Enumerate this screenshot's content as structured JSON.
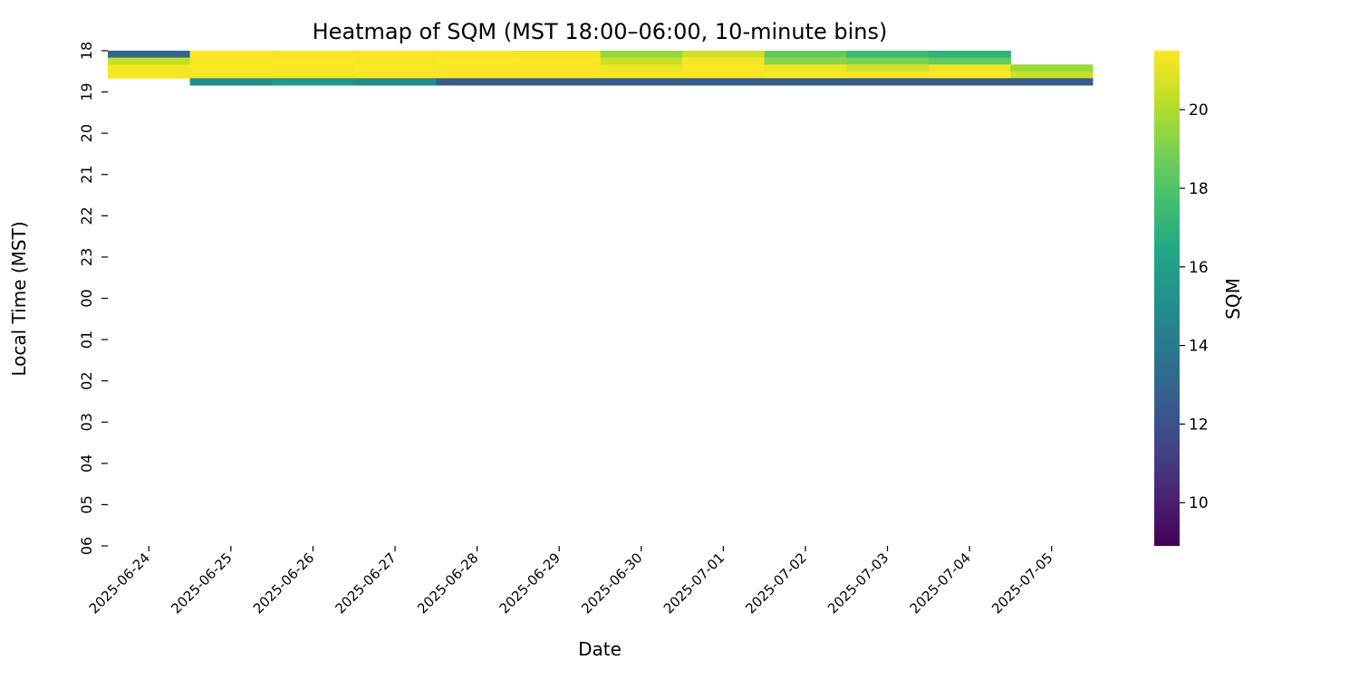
{
  "chart_data": {
    "type": "heatmap",
    "title": "Heatmap of SQM (MST 18:00–06:00, 10-minute bins)",
    "xlabel": "Date",
    "ylabel": "Local Time (MST)",
    "colorbar_label": "SQM",
    "colormap": "viridis",
    "vmin": 8.9,
    "vmax": 21.5,
    "colorbar_ticks": [
      10,
      12,
      14,
      16,
      18,
      20
    ],
    "x_categories": [
      "2025-06-24",
      "2025-06-25",
      "2025-06-26",
      "2025-06-27",
      "2025-06-28",
      "2025-06-29",
      "2025-06-30",
      "2025-07-01",
      "2025-07-02",
      "2025-07-03",
      "2025-07-04",
      "2025-07-05"
    ],
    "y_tick_labels": [
      "18",
      "19",
      "20",
      "21",
      "22",
      "23",
      "00",
      "01",
      "02",
      "03",
      "04",
      "05",
      "06"
    ],
    "y_bin_minutes": 10,
    "y_range_hours": [
      18,
      30
    ],
    "columns": [
      {
        "date": "2025-06-24",
        "start_bin": 0,
        "values": [
          13.0,
          20.3,
          21.3,
          21.4
        ]
      },
      {
        "date": "2025-06-25",
        "start_bin": 0,
        "values": [
          21.5,
          21.4,
          21.5,
          21.3,
          15.0
        ]
      },
      {
        "date": "2025-06-26",
        "start_bin": 0,
        "values": [
          21.4,
          21.5,
          21.4,
          21.3,
          15.5
        ]
      },
      {
        "date": "2025-06-27",
        "start_bin": 0,
        "values": [
          21.5,
          21.4,
          21.5,
          21.4,
          15.0
        ]
      },
      {
        "date": "2025-06-28",
        "start_bin": 0,
        "values": [
          21.4,
          21.5,
          21.4,
          21.5,
          12.5
        ]
      },
      {
        "date": "2025-06-29",
        "start_bin": 0,
        "values": [
          21.3,
          21.5,
          21.4,
          21.5,
          12.5
        ]
      },
      {
        "date": "2025-06-30",
        "start_bin": 0,
        "values": [
          19.5,
          20.5,
          21.2,
          21.4,
          12.5
        ]
      },
      {
        "date": "2025-07-01",
        "start_bin": 0,
        "values": [
          20.6,
          21.3,
          21.5,
          21.4,
          12.5
        ]
      },
      {
        "date": "2025-07-02",
        "start_bin": 0,
        "values": [
          18.5,
          19.3,
          21.2,
          21.5,
          12.5
        ]
      },
      {
        "date": "2025-07-03",
        "start_bin": 0,
        "values": [
          17.5,
          19.0,
          20.6,
          21.4,
          12.5
        ]
      },
      {
        "date": "2025-07-04",
        "start_bin": 0,
        "values": [
          17.0,
          18.5,
          21.2,
          21.5,
          12.5
        ]
      },
      {
        "date": "2025-07-05",
        "start_bin": 2,
        "values": [
          19.6,
          20.5,
          12.5
        ]
      }
    ]
  }
}
